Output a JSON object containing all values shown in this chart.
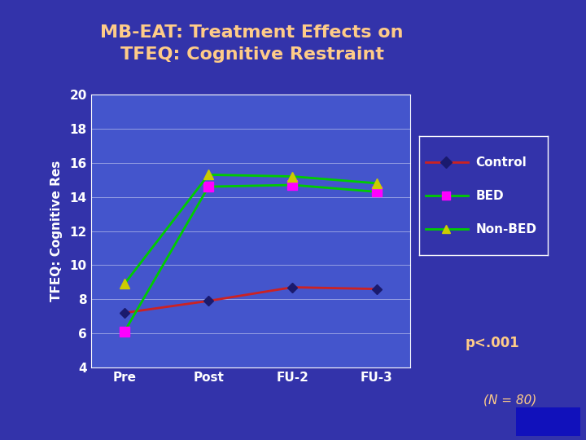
{
  "title_line1": "MB-EAT: Treatment Effects on",
  "title_line2": "TFEQ: Cognitive Restraint",
  "xlabel_labels": [
    "Pre",
    "Post",
    "FU-2",
    "FU-3"
  ],
  "ylabel": "TFEQ: Cognitive Res",
  "ylim": [
    4,
    20
  ],
  "yticks": [
    4,
    6,
    8,
    10,
    12,
    14,
    16,
    18,
    20
  ],
  "control": [
    7.2,
    7.9,
    8.7,
    8.6
  ],
  "bed": [
    6.1,
    14.6,
    14.7,
    14.3
  ],
  "non_bed": [
    8.9,
    15.3,
    15.2,
    14.8
  ],
  "control_line_color": "#cc2222",
  "control_marker_color": "#1a1a6e",
  "bed_line_color": "#00cc00",
  "bed_marker_color": "#ff00ff",
  "non_bed_line_color": "#00cc00",
  "non_bed_marker_color": "#cccc00",
  "bg_color": "#3333aa",
  "plot_bg_color": "#4455cc",
  "title_color": "#ffcc88",
  "axis_label_color": "#ffffff",
  "tick_label_color": "#ffffff",
  "legend_bg_color": "#3333aa",
  "legend_text_color": "#ffffff",
  "legend_border_color": "#ffffff",
  "p_value_text": "p<.001",
  "p_value_color": "#ffcc88",
  "n_text": "(N = 80)",
  "n_text_color": "#ffcc88",
  "grid_color": "#ffffff",
  "title_fontsize": 16,
  "axis_label_fontsize": 11,
  "tick_fontsize": 11,
  "legend_fontsize": 11
}
